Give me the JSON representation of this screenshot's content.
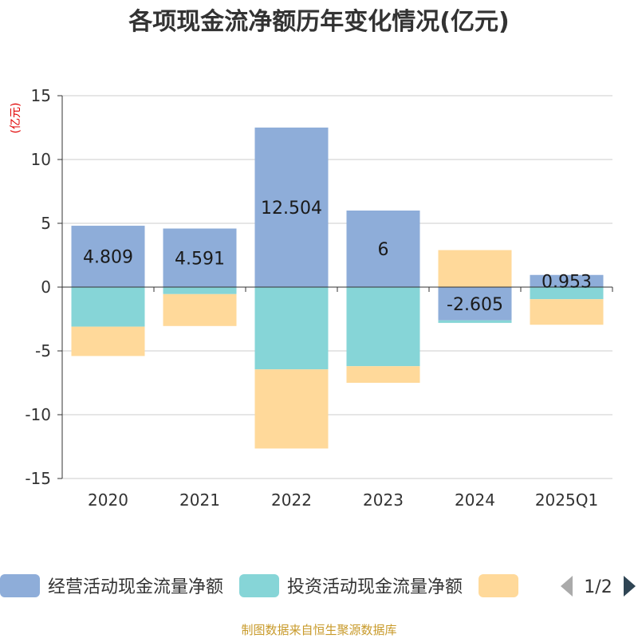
{
  "chart_data": {
    "type": "bar",
    "stacked": true,
    "title": "各项现金流净额历年变化情况(亿元)",
    "unit_label": "(亿元)",
    "categories": [
      "2020",
      "2021",
      "2022",
      "2023",
      "2024",
      "2025Q1"
    ],
    "ylim": [
      -15,
      15
    ],
    "yticks": [
      15,
      10,
      5,
      0,
      -5,
      -10,
      -15
    ],
    "grid": true,
    "legend_position": "bottom",
    "series": [
      {
        "name": "经营活动现金流量净额",
        "color": "#8eadd9",
        "values": [
          4.809,
          4.591,
          12.504,
          6,
          -2.605,
          0.953
        ],
        "labels": [
          "4.809",
          "4.591",
          "12.504",
          "6",
          "-2.605",
          "0.953"
        ]
      },
      {
        "name": "投资活动现金流量净额",
        "color": "#86d5d7",
        "values": [
          -3.1,
          -0.55,
          -6.45,
          -6.2,
          -0.2,
          -0.95
        ]
      },
      {
        "color": "#ffd99a",
        "values": [
          -2.3,
          -2.5,
          -6.2,
          -1.3,
          2.9,
          -2.0
        ]
      }
    ]
  },
  "legend": {
    "page": "1/2"
  },
  "source": "制图数据来自恒生聚源数据库"
}
